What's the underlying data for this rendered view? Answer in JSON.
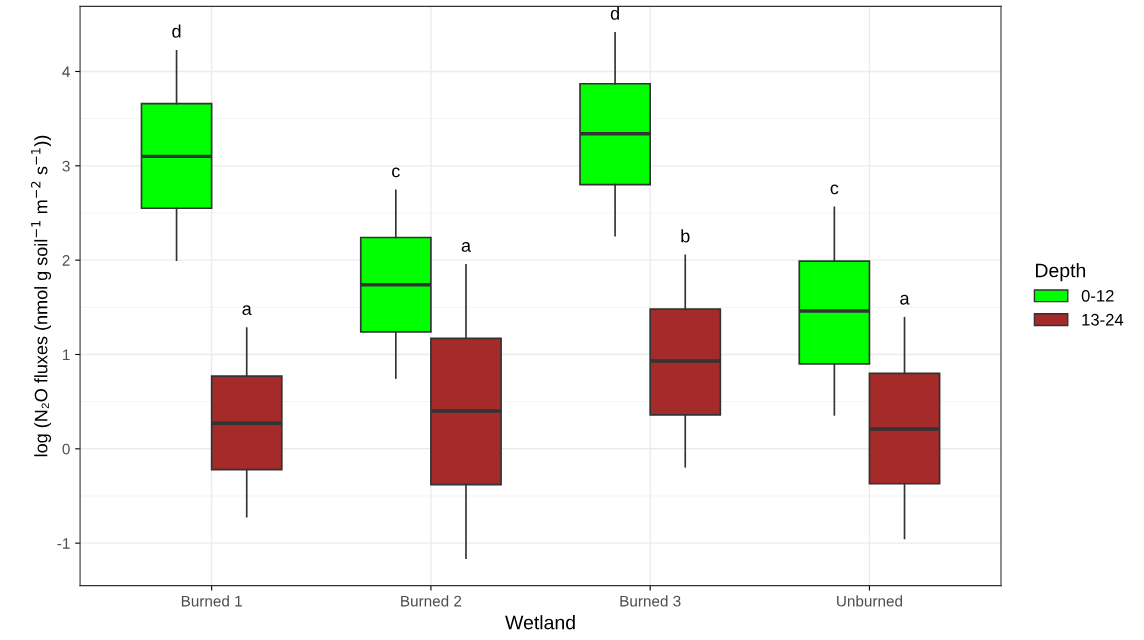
{
  "chart_data": {
    "type": "box",
    "xlabel": "Wetland",
    "ylabel": "log (N₂O fluxes (nmol g soil$^{−1}$ m$^{−2}$ s$^{−1}$))",
    "legend_title": "Depth",
    "categories": [
      "Burned 1",
      "Burned 2",
      "Burned 3",
      "Unburned"
    ],
    "series": [
      {
        "name": "0-12",
        "color": "#00ff00",
        "boxes": [
          {
            "low": 2.0,
            "q1": 2.55,
            "median": 3.1,
            "q3": 3.66,
            "high": 4.22
          },
          {
            "low": 0.75,
            "q1": 1.24,
            "median": 1.74,
            "q3": 2.24,
            "high": 2.74
          },
          {
            "low": 2.26,
            "q1": 2.8,
            "median": 3.34,
            "q3": 3.87,
            "high": 4.41
          },
          {
            "low": 0.36,
            "q1": 0.9,
            "median": 1.46,
            "q3": 1.99,
            "high": 2.56
          }
        ]
      },
      {
        "name": "13-24",
        "color": "#a52a2a",
        "boxes": [
          {
            "low": -0.72,
            "q1": -0.22,
            "median": 0.27,
            "q3": 0.77,
            "high": 1.28
          },
          {
            "low": -1.16,
            "q1": -0.38,
            "median": 0.4,
            "q3": 1.17,
            "high": 1.95
          },
          {
            "low": -0.19,
            "q1": 0.36,
            "median": 0.93,
            "q3": 1.48,
            "high": 2.05
          },
          {
            "low": -0.95,
            "q1": -0.37,
            "median": 0.21,
            "q3": 0.8,
            "high": 1.39
          }
        ]
      }
    ],
    "annotations": [
      "d",
      "a",
      "c",
      "a",
      "d",
      "b",
      "c",
      "a"
    ],
    "ylim": [
      -1.45,
      4.69
    ],
    "yticks": [
      -1,
      0,
      1,
      2,
      3,
      4
    ],
    "grid": true,
    "legend": "right"
  }
}
